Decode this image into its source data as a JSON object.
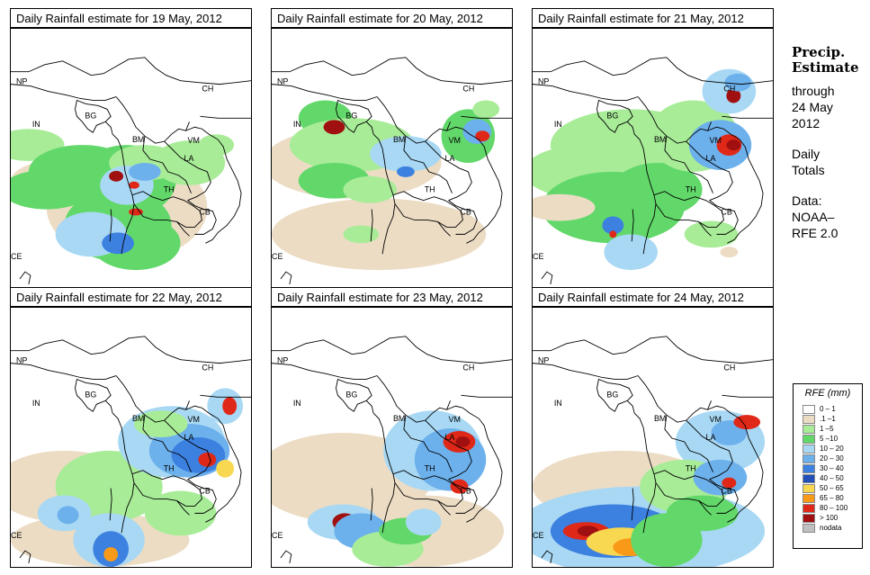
{
  "panels": [
    {
      "title": "Daily Rainfall estimate for  19 May, 2012",
      "day": "19 May, 2012"
    },
    {
      "title": "Daily Rainfall estimate for  20 May, 2012",
      "day": "20 May, 2012"
    },
    {
      "title": "Daily Rainfall estimate for  21 May, 2012",
      "day": "21 May, 2012"
    },
    {
      "title": "Daily Rainfall estimate for  22 May, 2012",
      "day": "22 May, 2012"
    },
    {
      "title": "Daily Rainfall estimate for  23 May, 2012",
      "day": "23 May, 2012"
    },
    {
      "title": "Daily Rainfall estimate for  24 May, 2012",
      "day": "24 May, 2012"
    }
  ],
  "country_labels": [
    "NP",
    "CH",
    "IN",
    "BG",
    "BM",
    "VM",
    "LA",
    "TH",
    "CB",
    "CE"
  ],
  "sidebar": {
    "title_line1": "Precip.",
    "title_line2": "Estimate",
    "through_label": "through",
    "through_date_1": "24 May",
    "through_date_2": "2012",
    "daily_1": "Daily",
    "daily_2": "Totals",
    "data_1": "Data:",
    "data_2": "NOAA–",
    "data_3": "RFE 2.0"
  },
  "legend": {
    "title": "RFE (mm)",
    "items": [
      {
        "label": "0 – 1",
        "color": "#ffffff"
      },
      {
        "label": ".1 –1",
        "color": "#ecdcc4"
      },
      {
        "label": "1 –5",
        "color": "#a8ec98"
      },
      {
        "label": "5 –10",
        "color": "#62d86a"
      },
      {
        "label": "10 – 20",
        "color": "#a8d8f4"
      },
      {
        "label": "20 – 30",
        "color": "#6cb0ec"
      },
      {
        "label": "30 – 40",
        "color": "#3c80e0"
      },
      {
        "label": "40 – 50",
        "color": "#2050b8"
      },
      {
        "label": "50 – 65",
        "color": "#f8d850"
      },
      {
        "label": "65 – 80",
        "color": "#f89a18"
      },
      {
        "label": "80 – 100",
        "color": "#e02818"
      },
      {
        "label": "> 100",
        "color": "#a01010"
      },
      {
        "label": "nodata",
        "color": "#c0c0c0"
      }
    ]
  }
}
